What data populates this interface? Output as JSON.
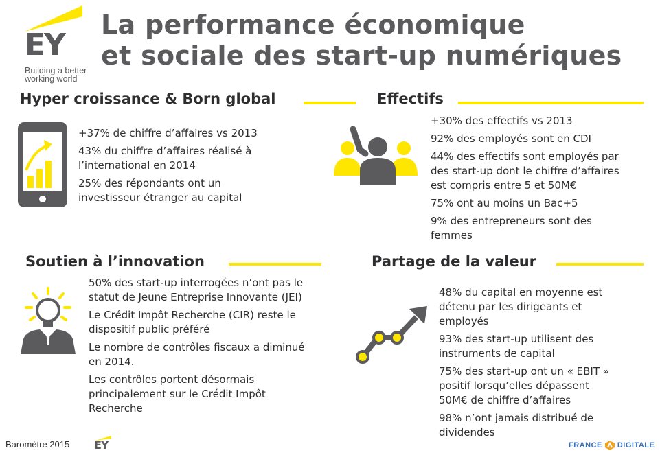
{
  "colors": {
    "accent": "#ffe600",
    "dark_gray": "#5b5b5e",
    "text": "#2e2e30",
    "fd_blue": "#3b6fb6",
    "fd_orange": "#f5a31a"
  },
  "brand": {
    "logo_text": "EY",
    "tagline_line1": "Building a better",
    "tagline_line2": "working world"
  },
  "title": {
    "line1": "La performance économique",
    "line2": "et sociale des start-up numériques"
  },
  "sections": {
    "hyper": {
      "heading": "Hyper croissance & Born global",
      "icon": "smartphone-growth-chart-icon",
      "items": [
        [
          "+37% de chiffre d’affaires vs 2013"
        ],
        [
          "43% du chiffre d’affaires réalisé à",
          "l’international en 2014"
        ],
        [
          "25% des répondants ont un",
          "investisseur étranger au capital"
        ]
      ]
    },
    "effectifs": {
      "heading": "Effectifs",
      "icon": "people-raised-hand-icon",
      "items": [
        [
          "+30% des effectifs vs 2013"
        ],
        [
          "92% des employés sont en CDI"
        ],
        [
          "44% des effectifs sont employés par",
          "des start-up dont le chiffre d’affaires",
          "est compris entre 5 et 50M€"
        ],
        [
          "75% ont au moins un Bac+5"
        ],
        [
          "9% des entrepreneurs sont des",
          "femmes"
        ]
      ]
    },
    "innovation": {
      "heading": "Soutien à l’innovation",
      "icon": "lightbulb-person-icon",
      "items": [
        [
          "50% des start-up interrogées n’ont pas le",
          "statut de Jeune Entreprise Innovante (JEI)"
        ],
        [
          "Le Crédit Impôt Recherche (CIR) reste le",
          "dispositif public préféré"
        ],
        [
          "Le nombre de contrôles fiscaux a diminué",
          "en 2014."
        ],
        [
          "Les contrôles portent désormais",
          "principalement sur le Crédit Impôt",
          "Recherche"
        ]
      ]
    },
    "partage": {
      "heading": "Partage de la valeur",
      "icon": "rising-arrow-icon",
      "items": [
        [
          "48% du capital en moyenne est",
          "détenu par les dirigeants et",
          "employés"
        ],
        [
          "93% des start-up utilisent des",
          "instruments de capital"
        ],
        [
          "75% des start-up ont un « EBIT »",
          "positif lorsqu’elles dépassent",
          "50M€ de chiffre d’affaires"
        ],
        [
          "98% n’ont jamais distribué de",
          "dividendes"
        ]
      ]
    }
  },
  "footer": {
    "barometre": "Baromètre 2015",
    "ey_small": "EY",
    "france_digitale": "FRANCE",
    "france_digitale_2": "DIGITALE"
  }
}
